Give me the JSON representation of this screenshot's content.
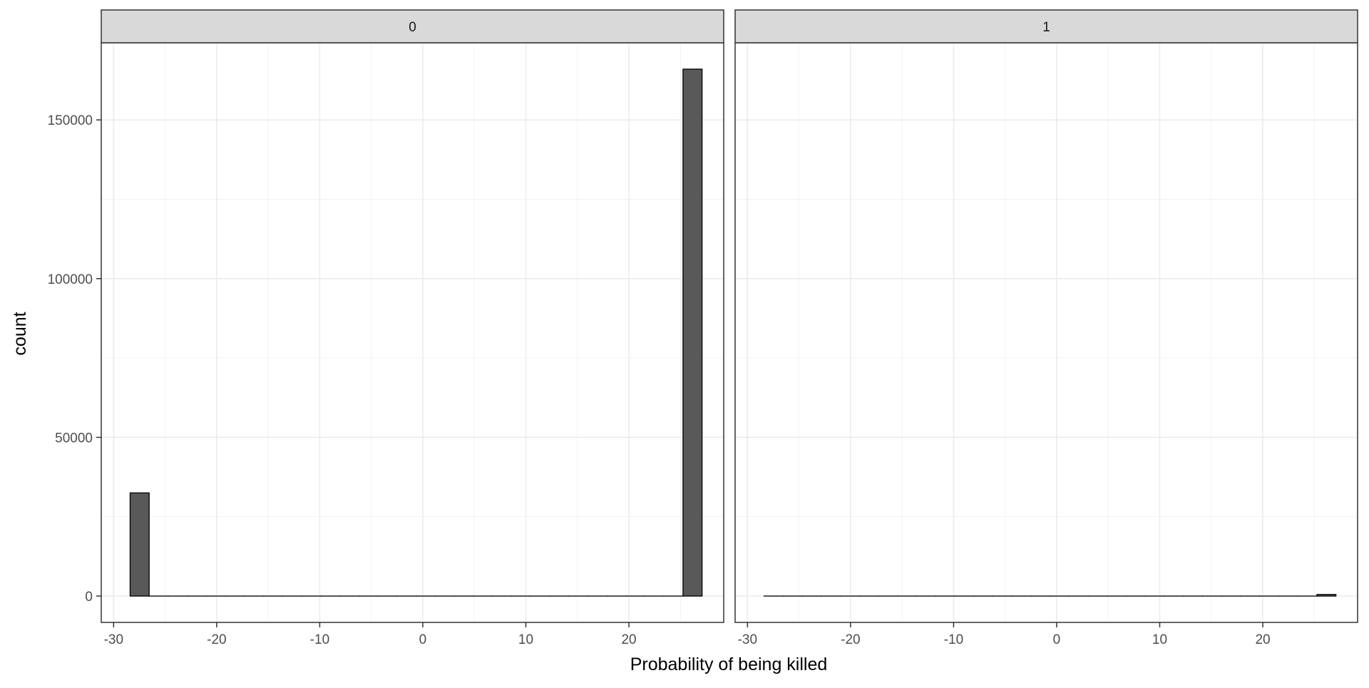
{
  "chart_data": {
    "type": "histogram",
    "xlabel": "Probability of being killed",
    "ylabel": "count",
    "xlim": [
      -31.2,
      29.2
    ],
    "ylim": [
      -8300,
      174300
    ],
    "x_ticks": [
      -30,
      -20,
      -10,
      0,
      10,
      20
    ],
    "x_tick_labels": [
      "-30",
      "-20",
      "-10",
      "0",
      "10",
      "20"
    ],
    "y_ticks": [
      0,
      50000,
      100000,
      150000
    ],
    "y_tick_labels": [
      "0",
      "50000",
      "100000",
      "150000"
    ],
    "bin_width": 1.85,
    "bins_start": -28.4,
    "grid": true,
    "bar_fill": "#595959",
    "bar_stroke": "#000000",
    "strip_fill": "#d9d9d9",
    "panels": [
      {
        "label": "0",
        "counts": [
          32500,
          0,
          0,
          0,
          0,
          0,
          0,
          0,
          0,
          0,
          0,
          0,
          0,
          0,
          0,
          0,
          0,
          0,
          0,
          0,
          0,
          0,
          0,
          0,
          0,
          0,
          0,
          0,
          0,
          166000
        ]
      },
      {
        "label": "1",
        "counts": [
          0,
          0,
          0,
          0,
          0,
          0,
          0,
          0,
          0,
          0,
          0,
          0,
          0,
          0,
          0,
          0,
          0,
          0,
          0,
          0,
          0,
          0,
          0,
          0,
          0,
          0,
          0,
          0,
          0,
          500
        ]
      }
    ]
  }
}
